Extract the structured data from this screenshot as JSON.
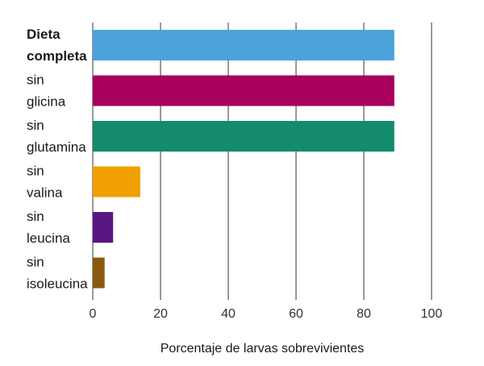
{
  "chart_data": {
    "type": "bar",
    "orientation": "horizontal",
    "categories": [
      [
        "Dieta",
        "completa"
      ],
      [
        "sin",
        "glicina"
      ],
      [
        "sin",
        "glutamina"
      ],
      [
        "sin",
        "valina"
      ],
      [
        "sin",
        "leucina"
      ],
      [
        "sin",
        "isoleucina"
      ]
    ],
    "values": [
      89,
      89,
      89,
      14,
      6,
      3.5
    ],
    "colors": [
      "#4ca3d9",
      "#a8005e",
      "#138b6c",
      "#f0a000",
      "#5a1680",
      "#8a5a10"
    ],
    "bold_first_category": true,
    "xlabel": "Porcentaje de larvas sobrevivientes",
    "ylabel": "",
    "xlim": [
      0,
      100
    ],
    "xticks": [
      0,
      20,
      40,
      60,
      80,
      100
    ],
    "grid": "vertical"
  }
}
